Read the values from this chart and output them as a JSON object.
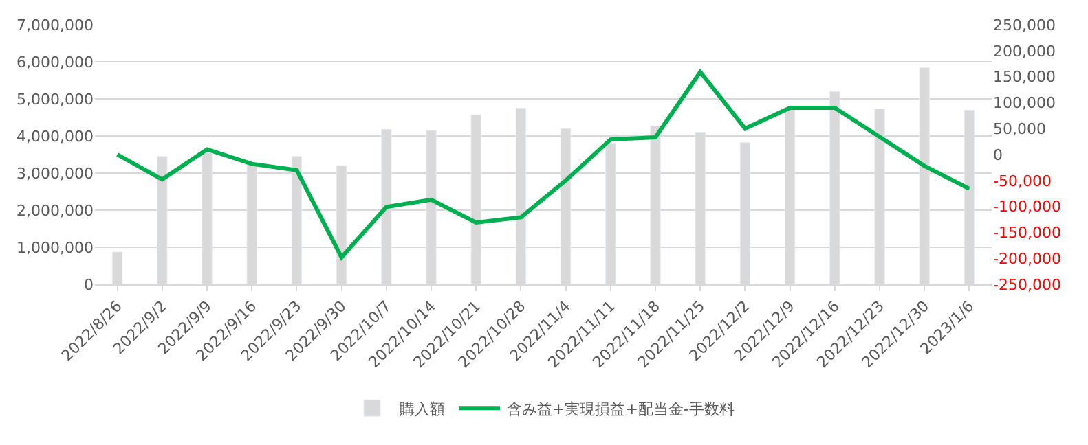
{
  "chart_data": {
    "type": "bar",
    "categories": [
      "2022/8/26",
      "2022/9/2",
      "2022/9/9",
      "2022/9/16",
      "2022/9/23",
      "2022/9/30",
      "2022/10/7",
      "2022/10/14",
      "2022/10/21",
      "2022/10/28",
      "2022/11/4",
      "2022/11/11",
      "2022/11/18",
      "2022/11/25",
      "2022/12/2",
      "2022/12/9",
      "2022/12/16",
      "2022/12/23",
      "2022/12/30",
      "2023/1/6"
    ],
    "series": [
      {
        "name": "購入額",
        "color": "#d9d9d9",
        "values": [
          870000,
          3450000,
          3550000,
          3250000,
          3450000,
          3200000,
          4180000,
          4150000,
          4570000,
          4750000,
          4200000,
          3800000,
          4270000,
          4100000,
          3820000,
          4750000,
          5200000,
          4730000,
          5840000,
          4700000
        ]
      },
      {
        "name": "含み益+実現損益+配当金-手数料",
        "type": "line",
        "axis": "y2",
        "color": "#00b050",
        "values": [
          0,
          -48000,
          10000,
          -18000,
          -30000,
          -198000,
          -101000,
          -87000,
          -131000,
          -121000,
          -50000,
          29000,
          33000,
          159000,
          50000,
          90000,
          90000,
          34000,
          -22000,
          -66000
        ]
      }
    ],
    "ylim": [
      0,
      7000000
    ],
    "yticks": [
      {
        "value": 0,
        "label": "0"
      },
      {
        "value": 1000000,
        "label": "1,000,000"
      },
      {
        "value": 2000000,
        "label": "2,000,000"
      },
      {
        "value": 3000000,
        "label": "3,000,000"
      },
      {
        "value": 4000000,
        "label": "4,000,000"
      },
      {
        "value": 5000000,
        "label": "5,000,000"
      },
      {
        "value": 6000000,
        "label": "6,000,000"
      },
      {
        "value": 7000000,
        "label": "7,000,000"
      }
    ],
    "y2lim": [
      -250000,
      250000
    ],
    "y2ticks": [
      {
        "value": 250000,
        "label": "250,000"
      },
      {
        "value": 200000,
        "label": "200,000"
      },
      {
        "value": 150000,
        "label": "150,000"
      },
      {
        "value": 100000,
        "label": "100,000"
      },
      {
        "value": 50000,
        "label": "50,000"
      },
      {
        "value": 0,
        "label": "0"
      },
      {
        "value": -50000,
        "label": "-50,000"
      },
      {
        "value": -100000,
        "label": "-100,000"
      },
      {
        "value": -150000,
        "label": "-150,000"
      },
      {
        "value": -200000,
        "label": "-200,000"
      },
      {
        "value": -250000,
        "label": "-250,000"
      }
    ],
    "grid": "y",
    "legend": "bottom",
    "marker": "none",
    "line_style": "solid"
  }
}
